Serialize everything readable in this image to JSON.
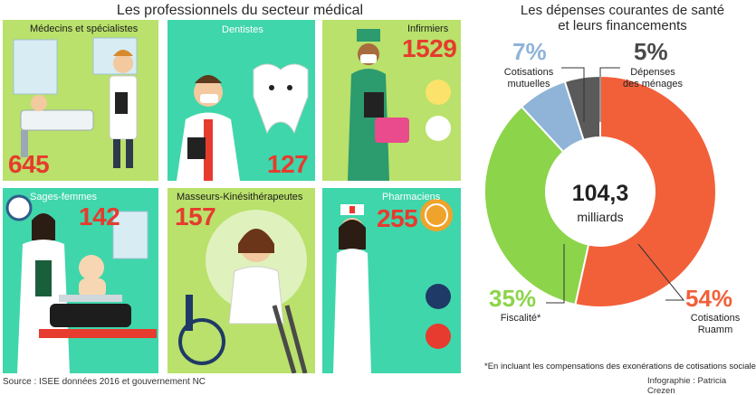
{
  "left_title": "Les professionnels du secteur médical",
  "right_title_line1": "Les dépenses courantes de santé",
  "right_title_line2": "et leurs financements",
  "cards": [
    {
      "label": "Médecins et spécialistes",
      "value": "645",
      "bg": "#b9e16b"
    },
    {
      "label": "Dentistes",
      "value": "127",
      "bg": "#3fd6ab"
    },
    {
      "label": "Infirmiers",
      "value": "1529",
      "bg": "#b9e16b"
    },
    {
      "label": "Sages-femmes",
      "value": "142",
      "bg": "#3fd6ab"
    },
    {
      "label": "Masseurs-Kinésithérapeutes",
      "value": "157",
      "bg": "#b9e16b"
    },
    {
      "label": "Pharmaciens",
      "value": "255",
      "bg": "#3fd6ab"
    }
  ],
  "chart_data": {
    "type": "pie",
    "center_value": "104,3",
    "center_unit": "milliards",
    "slices": [
      {
        "pct_label": "54%",
        "name_line1": "Cotisations",
        "name_line2": "Ruamm",
        "value": 54,
        "color": "#f2603a"
      },
      {
        "pct_label": "35%",
        "name_line1": "Fiscalité*",
        "name_line2": "",
        "value": 35,
        "color": "#8cd44a"
      },
      {
        "pct_label": "7%",
        "name_line1": "Cotisations",
        "name_line2": "mutuelles",
        "value": 7,
        "color": "#8fb4d8"
      },
      {
        "pct_label": "5%",
        "name_line1": "Dépenses",
        "name_line2": "des ménages",
        "value": 5,
        "color": "#5a5a5a"
      }
    ]
  },
  "footnote": "*En incluant les compensations des exonérations de cotisations sociales",
  "source": "Source : ISEE données 2016 et gouvernement NC",
  "credit": "Infographie : Patricia Crezen"
}
